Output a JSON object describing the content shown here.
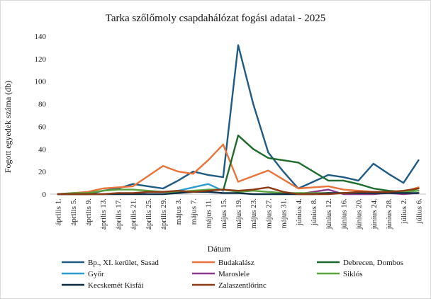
{
  "chart_data": {
    "type": "line",
    "title": "Tarka szőlőmoly csapdahálózat fogási adatai - 2025",
    "xlabel": "Dátum",
    "ylabel": "Fogott egyedek száma (db)",
    "ylim": [
      0,
      140
    ],
    "yticks": [
      0,
      20,
      40,
      60,
      80,
      100,
      120,
      140
    ],
    "grid": false,
    "legend_position": "bottom",
    "categories": [
      "április 1.",
      "április 5.",
      "április 9.",
      "április 13.",
      "április 17.",
      "április 21.",
      "április 25.",
      "április 29.",
      "május 3.",
      "május 7.",
      "május 11.",
      "május 15.",
      "május 19.",
      "május 23.",
      "május 27.",
      "május 31.",
      "június 4.",
      "június 8.",
      "június 12.",
      "június 16.",
      "június 20.",
      "június 24.",
      "június 28.",
      "július 2.",
      "július 6."
    ],
    "series": [
      {
        "name": "Bp., XI. kerület, Sasad",
        "color": "#1f5b82",
        "values": [
          0,
          0,
          0,
          3,
          5,
          9,
          7,
          5,
          12,
          20,
          17,
          15,
          132,
          80,
          37,
          20,
          5,
          11,
          17,
          15,
          12,
          27,
          18,
          10,
          30
        ]
      },
      {
        "name": "Budakalász",
        "color": "#e8743b",
        "values": [
          0,
          1,
          2,
          5,
          6,
          7,
          16,
          25,
          20,
          18,
          30,
          44,
          11,
          16,
          21,
          13,
          5,
          6,
          7,
          4,
          3,
          2,
          2,
          2,
          6
        ]
      },
      {
        "name": "Debrecen, Dombos",
        "color": "#1e6b2e",
        "values": [
          null,
          null,
          null,
          null,
          null,
          null,
          null,
          null,
          null,
          null,
          null,
          3,
          52,
          40,
          32,
          30,
          28,
          20,
          12,
          12,
          9,
          5,
          3,
          2,
          5
        ]
      },
      {
        "name": "Győr",
        "color": "#2e9ccc",
        "values": [
          null,
          null,
          null,
          null,
          null,
          null,
          2,
          2,
          3,
          6,
          9,
          3,
          null,
          null,
          null,
          null,
          null,
          null,
          null,
          null,
          null,
          null,
          null,
          null,
          null
        ]
      },
      {
        "name": "Maroslele",
        "color": "#8b3a8b",
        "values": [
          null,
          null,
          null,
          null,
          null,
          null,
          null,
          null,
          null,
          null,
          null,
          null,
          null,
          null,
          null,
          null,
          0,
          2,
          4,
          0,
          0,
          0,
          1,
          0,
          1
        ]
      },
      {
        "name": "Siklós",
        "color": "#5ba33f",
        "values": [
          0,
          1,
          1,
          3,
          4,
          4,
          3,
          2,
          2,
          3,
          4,
          4,
          2,
          3,
          2,
          1,
          1,
          1,
          1,
          1,
          1,
          1,
          1,
          2,
          3
        ]
      },
      {
        "name": "Kecskemét Kisfái",
        "color": "#0b2e45",
        "values": [
          0,
          0,
          0,
          0,
          0,
          0,
          0,
          0,
          1,
          2,
          2,
          1,
          1,
          0,
          0,
          0,
          0,
          0,
          1,
          1,
          1,
          1,
          1,
          1,
          1
        ]
      },
      {
        "name": "Zalaszentlőrinc",
        "color": "#8b3a14",
        "values": [
          0,
          0,
          0,
          0,
          1,
          1,
          2,
          2,
          3,
          2,
          3,
          4,
          3,
          4,
          6,
          2,
          0,
          0,
          0,
          1,
          2,
          2,
          2,
          3,
          5
        ]
      }
    ]
  }
}
